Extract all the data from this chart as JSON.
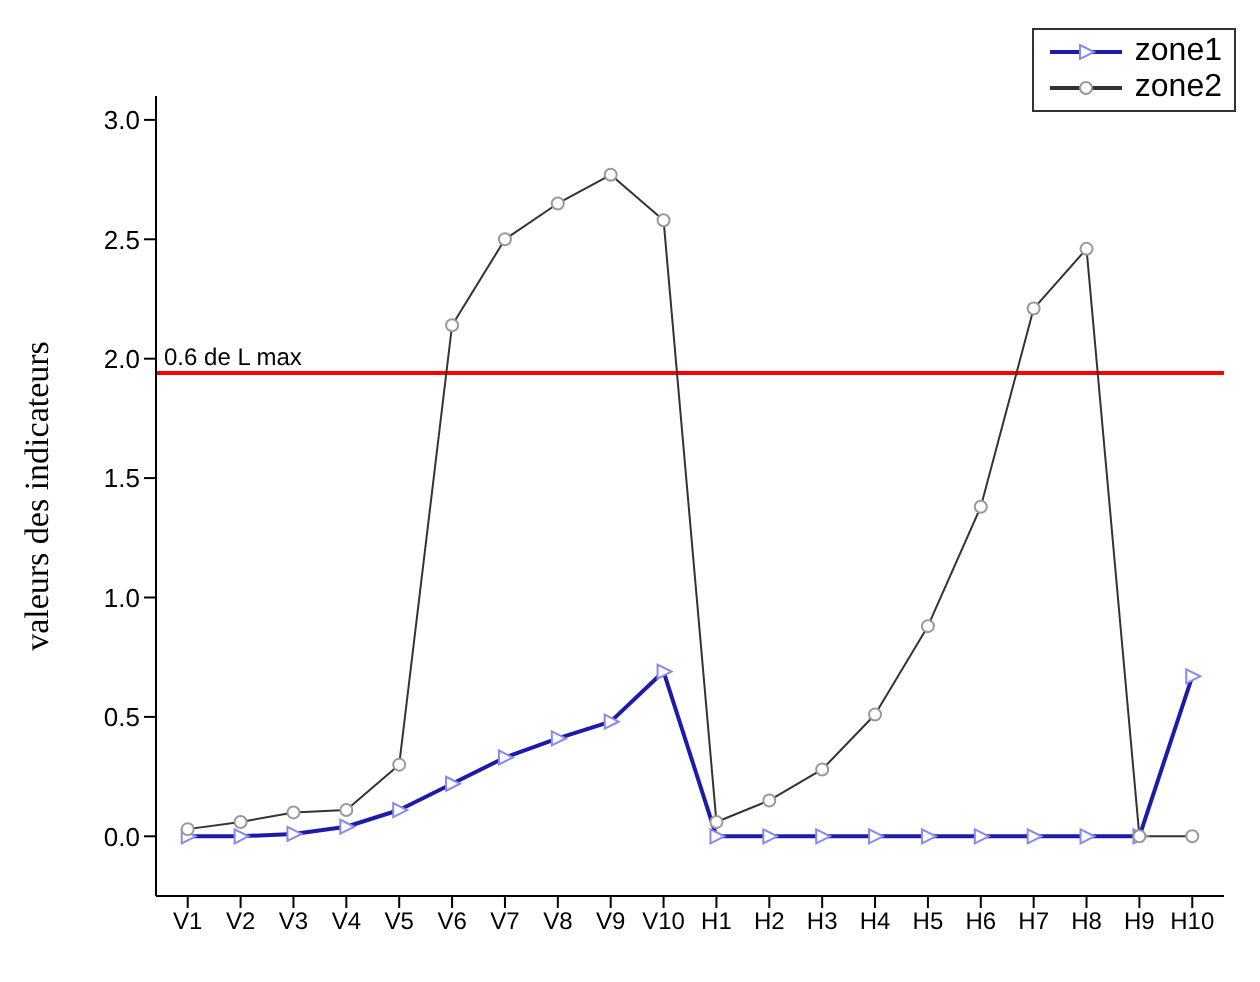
{
  "chart_data": {
    "type": "line",
    "ylabel": "valeurs des indicateurs",
    "categories": [
      "V1",
      "V2",
      "V3",
      "V4",
      "V5",
      "V6",
      "V7",
      "V8",
      "V9",
      "V10",
      "H1",
      "H2",
      "H3",
      "H4",
      "H5",
      "H6",
      "H7",
      "H8",
      "H9",
      "H10"
    ],
    "series": [
      {
        "name": "zone1",
        "color": "#1c1ca8",
        "marker": "triangle",
        "values": [
          0.0,
          0.0,
          0.01,
          0.04,
          0.11,
          0.22,
          0.33,
          0.41,
          0.48,
          0.69,
          0.0,
          0.0,
          0.0,
          0.0,
          0.0,
          0.0,
          0.0,
          0.0,
          0.0,
          0.67
        ]
      },
      {
        "name": "zone2",
        "color": "#333333",
        "marker": "circle",
        "values": [
          0.03,
          0.06,
          0.1,
          0.11,
          0.3,
          2.14,
          2.5,
          2.65,
          2.77,
          2.58,
          0.06,
          0.15,
          0.28,
          0.51,
          0.88,
          1.38,
          2.21,
          2.46,
          0.0,
          0.0
        ]
      }
    ],
    "ylim": [
      -0.25,
      3.1
    ],
    "yticks": [
      {
        "value": 0,
        "label": "0.0"
      },
      {
        "value": 0.5,
        "label": "0.5"
      },
      {
        "value": 1,
        "label": "1.0"
      },
      {
        "value": 1.5,
        "label": "1.5"
      },
      {
        "value": 2,
        "label": "2.0"
      },
      {
        "value": 2.5,
        "label": "2.5"
      },
      {
        "value": 3,
        "label": "3.0"
      }
    ],
    "ref_lines": [
      {
        "axis": "y",
        "value": 1.94,
        "label": "0.6 de L max",
        "color": "#ff0000"
      }
    ],
    "legend": "top right",
    "grid": false,
    "line_style": "solid"
  }
}
